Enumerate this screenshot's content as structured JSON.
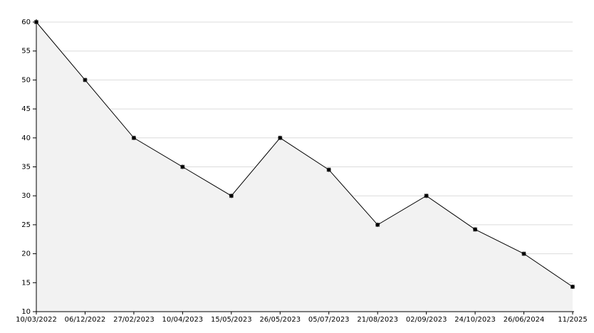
{
  "chart_data": {
    "type": "area",
    "categories": [
      "10/03/2022",
      "06/12/2022",
      "27/02/2023",
      "10/04/2023",
      "15/05/2023",
      "26/05/2023",
      "05/07/2023",
      "21/08/2023",
      "02/09/2023",
      "24/10/2023",
      "26/06/2024",
      "11/2025"
    ],
    "values": [
      60,
      50,
      40,
      35,
      30,
      40,
      34.5,
      25,
      30,
      24.2,
      20,
      14.3
    ],
    "color": "#000000",
    "fill_color": "#f2f2f2",
    "ylim": [
      10,
      60
    ],
    "yticks": [
      10,
      15,
      20,
      25,
      30,
      35,
      40,
      45,
      50,
      55,
      60
    ],
    "grid": true
  }
}
